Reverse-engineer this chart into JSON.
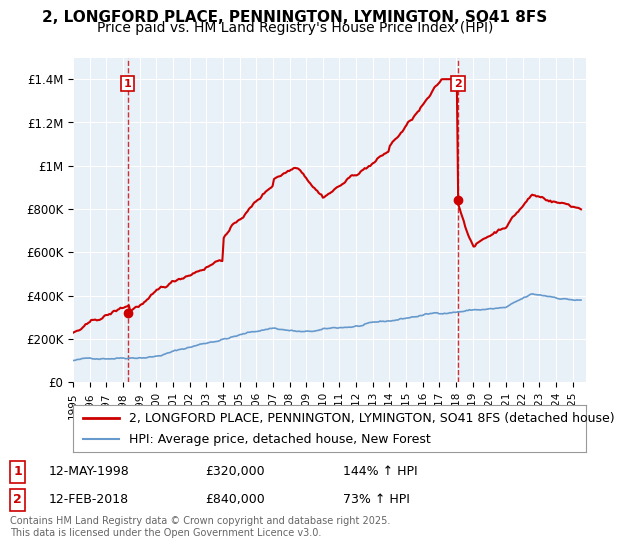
{
  "title": "2, LONGFORD PLACE, PENNINGTON, LYMINGTON, SO41 8FS",
  "subtitle": "Price paid vs. HM Land Registry's House Price Index (HPI)",
  "ylabel_ticks": [
    "£0",
    "£200K",
    "£400K",
    "£600K",
    "£800K",
    "£1M",
    "£1.2M",
    "£1.4M"
  ],
  "ytick_values": [
    0,
    200000,
    400000,
    600000,
    800000,
    1000000,
    1200000,
    1400000
  ],
  "ylim": [
    0,
    1500000
  ],
  "line1_color": "#cc0000",
  "line2_color": "#6699cc",
  "vline_color": "#cc0000",
  "background_color": "#ffffff",
  "plot_bg_color": "#e8f0f8",
  "grid_color": "#ffffff",
  "legend_label1": "2, LONGFORD PLACE, PENNINGTON, LYMINGTON, SO41 8FS (detached house)",
  "legend_label2": "HPI: Average price, detached house, New Forest",
  "sale1_date": "12-MAY-1998",
  "sale1_price": 320000,
  "sale1_label": "144% ↑ HPI",
  "sale2_date": "12-FEB-2018",
  "sale2_price": 840000,
  "sale2_label": "73% ↑ HPI",
  "copyright_text": "Contains HM Land Registry data © Crown copyright and database right 2025.\nThis data is licensed under the Open Government Licence v3.0.",
  "title_fontsize": 11,
  "subtitle_fontsize": 10,
  "tick_fontsize": 8.5,
  "legend_fontsize": 9,
  "annotation_fontsize": 9
}
